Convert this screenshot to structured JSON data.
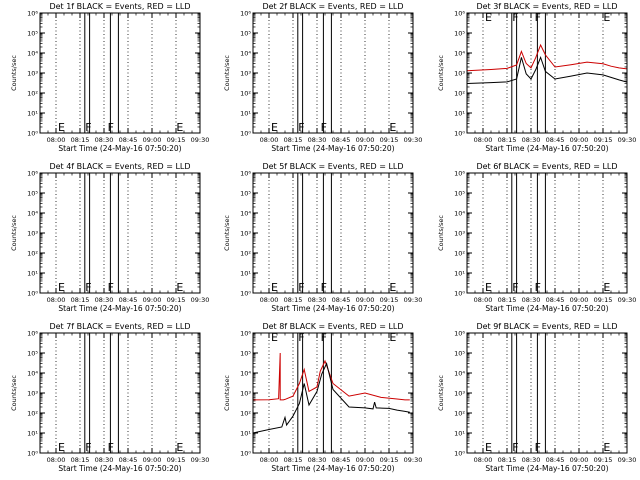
{
  "figure": {
    "xlabel": "Start Time (24-May-16 07:50:20)",
    "ylabel": "Counts/sec",
    "x_tick_labels": [
      "08:00",
      "08:15",
      "08:30",
      "08:45",
      "09:00",
      "09:15",
      "09:30"
    ],
    "y_tick_labels": [
      "10⁰",
      "10¹",
      "10²",
      "10³",
      "10⁴",
      "10⁵",
      "10⁶"
    ],
    "markers": [
      "E",
      "F",
      "F",
      "E"
    ],
    "colors": {
      "events": "#000000",
      "lld": "#cc0000",
      "frame": "#000000"
    }
  },
  "chart_data": [
    {
      "type": "line",
      "title": "Det 1f BLACK = Events, RED = LLD",
      "xlim": [
        "07:50",
        "09:30"
      ],
      "ylim": [
        1,
        1000000
      ],
      "yscale": "log",
      "series": []
    },
    {
      "type": "line",
      "title": "Det 2f BLACK = Events, RED = LLD",
      "xlim": [
        "07:50",
        "09:30"
      ],
      "ylim": [
        1,
        1000000
      ],
      "yscale": "log",
      "series": []
    },
    {
      "type": "line",
      "title": "Det 3f BLACK = Events, RED = LLD",
      "xlim": [
        "07:50",
        "09:30"
      ],
      "ylim": [
        1,
        1000000
      ],
      "yscale": "log",
      "series": [
        {
          "color": "#cc0000",
          "x": [
            "07:50",
            "08:05",
            "08:15",
            "08:21",
            "08:24",
            "08:27",
            "08:30",
            "08:33",
            "08:36",
            "08:39",
            "08:45",
            "08:55",
            "09:05",
            "09:15",
            "09:20",
            "09:25",
            "09:30"
          ],
          "y": [
            1300,
            1500,
            1700,
            2500,
            12000,
            3000,
            1800,
            6000,
            25000,
            8000,
            2000,
            2600,
            3500,
            2900,
            2200,
            1800,
            1600
          ]
        },
        {
          "color": "#000000",
          "x": [
            "07:50",
            "08:05",
            "08:15",
            "08:21",
            "08:24",
            "08:27",
            "08:30",
            "08:33",
            "08:36",
            "08:39",
            "08:45",
            "08:55",
            "09:05",
            "09:15",
            "09:20",
            "09:25",
            "09:30"
          ],
          "y": [
            300,
            330,
            360,
            500,
            6000,
            900,
            500,
            1500,
            6000,
            1200,
            500,
            700,
            1000,
            800,
            600,
            450,
            350
          ]
        }
      ]
    },
    {
      "type": "line",
      "title": "Det 4f BLACK = Events, RED = LLD",
      "xlim": [
        "07:50",
        "09:30"
      ],
      "ylim": [
        1,
        1000000
      ],
      "yscale": "log",
      "series": []
    },
    {
      "type": "line",
      "title": "Det 5f BLACK = Events, RED = LLD",
      "xlim": [
        "07:50",
        "09:30"
      ],
      "ylim": [
        1,
        1000000
      ],
      "yscale": "log",
      "series": []
    },
    {
      "type": "line",
      "title": "Det 6f BLACK = Events, RED = LLD",
      "xlim": [
        "07:50",
        "09:30"
      ],
      "ylim": [
        1,
        1000000
      ],
      "yscale": "log",
      "series": []
    },
    {
      "type": "line",
      "title": "Det 7f BLACK = Events, RED = LLD",
      "xlim": [
        "07:50",
        "09:30"
      ],
      "ylim": [
        1,
        1000000
      ],
      "yscale": "log",
      "series": []
    },
    {
      "type": "line",
      "title": "Det 8f BLACK = Events, RED = LLD",
      "xlim": [
        "07:50",
        "09:30"
      ],
      "ylim": [
        1,
        1000000
      ],
      "yscale": "log",
      "series": [
        {
          "color": "#cc0000",
          "x": [
            "07:50",
            "08:00",
            "08:06",
            "08:07",
            "08:07",
            "08:09",
            "08:10",
            "08:15",
            "08:19",
            "08:22",
            "08:25",
            "08:30",
            "08:32",
            "08:35",
            "08:40",
            "08:50",
            "09:00",
            "09:10",
            "09:20",
            "09:25",
            "09:28"
          ],
          "y": [
            450,
            460,
            520,
            100000,
            450,
            450,
            480,
            700,
            3000,
            15000,
            1200,
            2000,
            12000,
            40000,
            3000,
            700,
            1000,
            600,
            500,
            450,
            450
          ]
        },
        {
          "color": "#000000",
          "x": [
            "07:50",
            "08:00",
            "08:08",
            "08:10",
            "08:11",
            "08:15",
            "08:19",
            "08:22",
            "08:25",
            "08:30",
            "08:33",
            "08:36",
            "08:40",
            "08:50",
            "09:00",
            "09:05",
            "09:06",
            "09:07",
            "09:15",
            "09:20",
            "09:25",
            "09:28"
          ],
          "y": [
            10,
            15,
            20,
            60,
            25,
            70,
            300,
            3000,
            250,
            1200,
            9000,
            30000,
            1500,
            200,
            180,
            160,
            350,
            180,
            170,
            140,
            120,
            110
          ]
        }
      ]
    },
    {
      "type": "line",
      "title": "Det 9f BLACK = Events, RED = LLD",
      "xlim": [
        "07:50",
        "09:30"
      ],
      "ylim": [
        1,
        1000000
      ],
      "yscale": "log",
      "series": []
    }
  ]
}
